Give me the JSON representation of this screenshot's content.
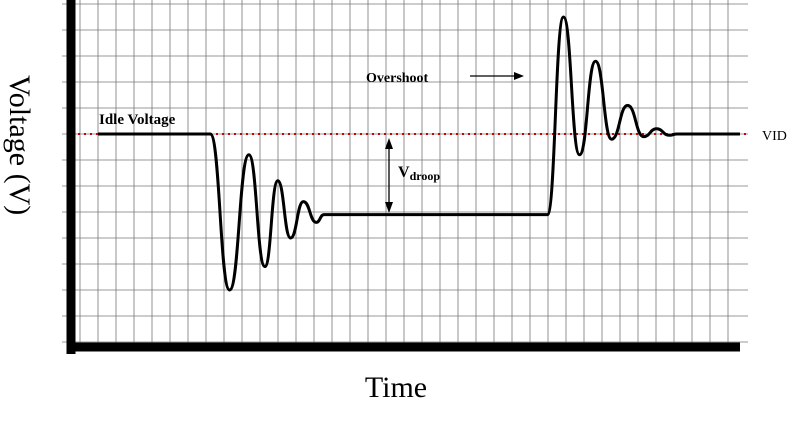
{
  "chart_data": {
    "type": "line",
    "title": "",
    "xlabel": "Time",
    "ylabel": "Voltage (V)",
    "grid": true,
    "x_ticks_labeled": false,
    "y_ticks_labeled": false,
    "reference_line": {
      "label": "VID",
      "style": "dotted",
      "color": "#cc0000",
      "y": 0
    },
    "annotations": {
      "idle_voltage": "Idle Voltage",
      "overshoot": "Overshoot",
      "vdroop_main": "V",
      "vdroop_sub": "droop"
    },
    "series": [
      {
        "color": "#000000",
        "segments": [
          {
            "phase": "idle",
            "x_start": 0,
            "x_end": 17.5,
            "level": 0
          },
          {
            "phase": "load-step ringing",
            "x_start": 17.5,
            "x_end": 36,
            "settles_to": -3.1,
            "peaks": [
              [
                20.5,
                -6
              ],
              [
                23.5,
                -0.8
              ],
              [
                26,
                -5.1
              ],
              [
                28,
                -1.8
              ],
              [
                30,
                -4.0
              ],
              [
                32,
                -2.6
              ],
              [
                34,
                -3.4
              ]
            ]
          },
          {
            "phase": "loaded",
            "x_start": 36,
            "x_end": 70,
            "level": -3.1
          },
          {
            "phase": "load-release ringing",
            "x_start": 70,
            "x_end": 97,
            "settles_to": 0,
            "peaks": [
              [
                72.5,
                4.5
              ],
              [
                75,
                -0.8
              ],
              [
                77.5,
                2.8
              ],
              [
                80,
                -0.2
              ],
              [
                82.5,
                1.1
              ],
              [
                85,
                -0.1
              ],
              [
                87,
                0.2
              ],
              [
                89,
                -0.05
              ]
            ]
          },
          {
            "phase": "idle",
            "x_start": 97,
            "x_end": 100,
            "level": 0
          }
        ]
      }
    ],
    "xlim": [
      0,
      100
    ],
    "ylim": [
      -8,
      5
    ]
  },
  "colors": {
    "axis": "#000000",
    "grid": "#777777",
    "trace": "#000000",
    "vid": "#cc0000"
  }
}
